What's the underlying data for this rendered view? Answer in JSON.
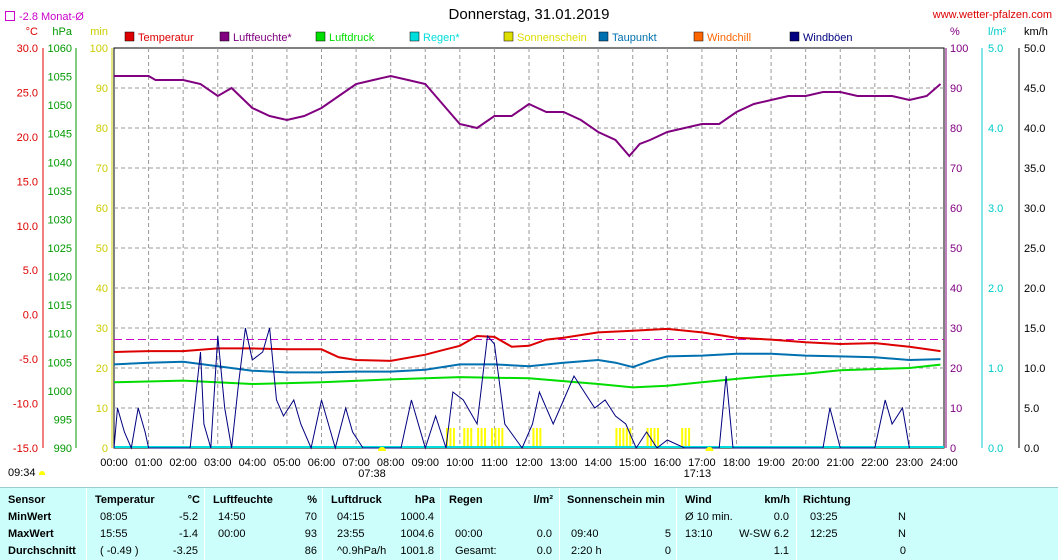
{
  "header": {
    "title": "Donnerstag, 31.01.2019",
    "site": "www.wetter-pfalzen.com",
    "month_avg": "-2.8 Monat-Ø"
  },
  "units": {
    "temp": "°C",
    "pressure": "hPa",
    "minutes": "min",
    "percent": "%",
    "rain": "l/m²",
    "wind": "km/h"
  },
  "legend": [
    {
      "name": "Temperatur",
      "color": "#dd0000"
    },
    {
      "name": "Luftfeuchte*",
      "color": "#800080"
    },
    {
      "name": "Luftdruck",
      "color": "#00dd00"
    },
    {
      "name": "Regen*",
      "color": "#00dddd"
    },
    {
      "name": "Sonnenschein",
      "color": "#dddd00"
    },
    {
      "name": "Taupunkt",
      "color": "#0070b0"
    },
    {
      "name": "Windchill",
      "color": "#ff6600"
    },
    {
      "name": "Windböen",
      "color": "#000080"
    }
  ],
  "sun_events": {
    "sunrise": "07:38",
    "sunset": "17:13",
    "first_label": "09:34"
  },
  "chart_data": {
    "type": "line",
    "title": "Donnerstag, 31.01.2019",
    "x_ticks": [
      "00:00",
      "01:00",
      "02:00",
      "03:00",
      "04:00",
      "05:00",
      "06:00",
      "07:00",
      "08:00",
      "09:00",
      "10:00",
      "11:00",
      "12:00",
      "13:00",
      "14:00",
      "15:00",
      "16:00",
      "17:00",
      "18:00",
      "19:00",
      "20:00",
      "21:00",
      "22:00",
      "23:00",
      "24:00"
    ],
    "xlim": [
      0,
      24
    ],
    "axes": {
      "temp_c": {
        "ticks": [
          "30.0",
          "25.0",
          "20.0",
          "15.0",
          "10.0",
          "5.0",
          "0.0",
          "-5.0",
          "-10.0",
          "-15.0"
        ],
        "range": [
          -15,
          30
        ],
        "color": "#dd0000"
      },
      "pressure_hpa": {
        "ticks": [
          "1060",
          "1055",
          "1050",
          "1045",
          "1040",
          "1035",
          "1030",
          "1025",
          "1020",
          "1015",
          "1010",
          "1005",
          "1000",
          "995",
          "990"
        ],
        "range": [
          990,
          1060
        ],
        "color": "#009900"
      },
      "minutes": {
        "ticks": [
          "100",
          "90",
          "80",
          "70",
          "60",
          "50",
          "40",
          "30",
          "20",
          "10",
          "0"
        ],
        "range": [
          0,
          100
        ],
        "color": "#cccc00"
      },
      "percent": {
        "ticks": [
          "100",
          "90",
          "80",
          "70",
          "60",
          "50",
          "40",
          "30",
          "20",
          "10",
          "0"
        ],
        "range": [
          0,
          100
        ],
        "color": "#800080"
      },
      "rain": {
        "ticks": [
          "5.0",
          "4.0",
          "3.0",
          "2.0",
          "1.0",
          "0.0"
        ],
        "range": [
          0,
          5
        ],
        "color": "#00cccc"
      },
      "wind_kmh": {
        "ticks": [
          "50.0",
          "45.0",
          "40.0",
          "35.0",
          "30.0",
          "25.0",
          "20.0",
          "15.0",
          "10.0",
          "5.0",
          "0.0"
        ],
        "range": [
          0,
          50
        ],
        "color": "#000000"
      }
    },
    "month_avg_line": -2.8,
    "series": [
      {
        "name": "Luftfeuchte*",
        "axis": "percent",
        "color": "#800080",
        "x": [
          0,
          1,
          1.2,
          2,
          2.5,
          3,
          3.4,
          4,
          4.5,
          5,
          5.5,
          6,
          6.5,
          7,
          7.5,
          8,
          8.5,
          9,
          9.5,
          10,
          10.5,
          11,
          11.5,
          12,
          12.5,
          13,
          13.5,
          14,
          14.5,
          14.9,
          15.2,
          15.5,
          16,
          16.5,
          17,
          17.5,
          18,
          18.5,
          19,
          19.5,
          20,
          20.5,
          21,
          21.5,
          22,
          22.5,
          23,
          23.5,
          23.9
        ],
        "y": [
          93,
          93,
          92,
          92,
          91,
          88,
          90,
          85,
          83,
          82,
          83,
          85,
          88,
          91,
          92,
          93,
          92,
          91,
          86,
          81,
          80,
          83,
          83,
          86,
          84,
          84,
          82,
          79,
          77,
          73,
          76,
          77,
          79,
          80,
          81,
          81,
          84,
          86,
          87,
          88,
          88,
          89,
          89,
          88,
          88,
          88,
          87,
          88,
          91
        ]
      },
      {
        "name": "Temperatur",
        "axis": "temp_c",
        "color": "#dd0000",
        "x": [
          0,
          1,
          2,
          3,
          4,
          5,
          6,
          6.5,
          7,
          8,
          9,
          9.5,
          10,
          10.5,
          11,
          11.5,
          12,
          12.5,
          13,
          14,
          15,
          16,
          17,
          18,
          19,
          20,
          21,
          22,
          23,
          23.9
        ],
        "y": [
          -4.2,
          -4.1,
          -4.1,
          -3.8,
          -3.8,
          -3.9,
          -3.9,
          -4.8,
          -5.1,
          -5.2,
          -4.5,
          -4.0,
          -3.5,
          -2.4,
          -2.5,
          -3.6,
          -3.5,
          -2.8,
          -2.6,
          -2.0,
          -1.8,
          -1.6,
          -2.0,
          -2.6,
          -2.8,
          -3.1,
          -3.3,
          -3.2,
          -3.6,
          -4.1
        ]
      },
      {
        "name": "Taupunkt",
        "axis": "temp_c",
        "color": "#0070b0",
        "x": [
          0,
          1,
          2,
          3,
          4,
          5,
          6,
          7,
          8,
          9,
          10,
          11,
          12,
          13,
          14,
          14.5,
          15,
          15.5,
          16,
          17,
          18,
          19,
          20,
          21,
          22,
          23,
          23.9
        ],
        "y": [
          -5.6,
          -5.4,
          -5.3,
          -5.8,
          -6.3,
          -6.5,
          -6.5,
          -6.4,
          -6.4,
          -6.2,
          -5.6,
          -5.6,
          -5.8,
          -5.4,
          -5.1,
          -5.4,
          -5.9,
          -5.2,
          -4.7,
          -4.6,
          -4.4,
          -4.4,
          -4.6,
          -4.7,
          -4.8,
          -5.1,
          -5.0
        ]
      },
      {
        "name": "Luftdruck",
        "axis": "pressure_hpa",
        "color": "#00dd00",
        "x": [
          0,
          2,
          4,
          6,
          8,
          10,
          12,
          14,
          15,
          16,
          17,
          18,
          19,
          20,
          21,
          22,
          23,
          23.9
        ],
        "y": [
          1001.5,
          1001.8,
          1001.2,
          1001.5,
          1002.0,
          1002.4,
          1002.2,
          1001.2,
          1000.6,
          1000.9,
          1001.5,
          1002.1,
          1002.6,
          1003.0,
          1003.6,
          1003.8,
          1004.0,
          1004.6
        ]
      },
      {
        "name": "Windböen",
        "axis": "wind_kmh",
        "color": "#000080",
        "x": [
          0,
          0.1,
          0.3,
          0.5,
          0.7,
          0.9,
          1.0,
          1.2,
          1.5,
          2.0,
          2.2,
          2.5,
          2.6,
          2.8,
          3.0,
          3.2,
          3.4,
          3.6,
          3.8,
          4.0,
          4.3,
          4.5,
          4.7,
          4.9,
          5.2,
          5.4,
          5.7,
          6.0,
          6.2,
          6.4,
          6.7,
          6.9,
          7.2,
          8.0,
          8.3,
          8.6,
          9.0,
          9.3,
          9.6,
          9.8,
          10.1,
          10.5,
          10.8,
          11.0,
          11.3,
          11.8,
          12.1,
          12.3,
          12.7,
          13.0,
          13.3,
          13.6,
          13.9,
          14.2,
          14.5,
          14.8,
          15.1,
          15.4,
          15.7,
          16.0,
          16.5,
          16.8,
          17.0,
          17.5,
          17.7,
          17.9,
          18.2,
          18.5,
          20.3,
          20.5,
          20.7,
          21.0,
          22.0,
          22.3,
          22.5,
          22.8,
          23.0
        ],
        "y": [
          0,
          5,
          2,
          0,
          5,
          2,
          0,
          0,
          0,
          0,
          0,
          12,
          3,
          0,
          14,
          5,
          0,
          8,
          15,
          11,
          12,
          15,
          6,
          4,
          6,
          3,
          0,
          6,
          3,
          0,
          5,
          2,
          0,
          0,
          0,
          6,
          0,
          4,
          0,
          7,
          6,
          3,
          14,
          13,
          3,
          0,
          3,
          7,
          3,
          6,
          9,
          7,
          5,
          6,
          4,
          3,
          0,
          2,
          0,
          1,
          0,
          0,
          0,
          0,
          9,
          0,
          0,
          0,
          0,
          0,
          5,
          0,
          0,
          6,
          3,
          5,
          0
        ]
      }
    ],
    "sunshine_bars": [
      {
        "x": [
          9.6,
          9.7,
          9.8,
          10.1,
          10.2,
          10.3,
          10.5,
          10.6,
          10.7,
          10.9,
          11.0,
          11.1,
          11.2,
          12.1,
          12.2,
          12.3,
          14.5,
          14.6,
          14.7,
          14.8,
          14.9,
          15.4,
          15.5,
          15.6,
          15.7,
          16.4,
          16.5,
          16.6
        ],
        "y": 5
      }
    ]
  },
  "stats": {
    "headers": {
      "sensor": "Sensor",
      "temp": "Temperatur",
      "temp_unit": "°C",
      "hum": "Luftfeuchte",
      "hum_unit": "%",
      "press": "Luftdruck",
      "press_unit": "hPa",
      "rain": "Regen",
      "rain_unit": "l/m²",
      "sun": "Sonnenschein min",
      "wind": "Wind",
      "wind_unit": "km/h",
      "dir": "Richtung"
    },
    "rows": [
      {
        "label": "MinWert",
        "temp_time": "08:05",
        "temp_val": "-5.2",
        "hum_time": "14:50",
        "hum_val": "70",
        "press_time": "04:15",
        "press_val": "1000.4",
        "rain_time": "",
        "rain_val": "",
        "sun_time": "",
        "sun_val": "",
        "wind_time": "Ø 10 min.",
        "wind_val": "0.0",
        "dir_time": "03:25",
        "dir_val": "N"
      },
      {
        "label": "MaxWert",
        "temp_time": "15:55",
        "temp_val": "-1.4",
        "hum_time": "00:00",
        "hum_val": "93",
        "press_time": "23:55",
        "press_val": "1004.6",
        "rain_time": "00:00",
        "rain_val": "0.0",
        "sun_time": "09:40",
        "sun_val": "5",
        "wind_time": "13:10",
        "wind_val": "W-SW 6.2",
        "dir_time": "12:25",
        "dir_val": "N"
      },
      {
        "label": "Durchschnitt",
        "temp_time": "( -0.49 )",
        "temp_val": "-3.25",
        "hum_time": "",
        "hum_val": "86",
        "press_time": "^0.9hPa/h",
        "press_val": "1001.8",
        "rain_time": "Gesamt:",
        "rain_val": "0.0",
        "sun_time": "2:20 h",
        "sun_val": "0",
        "wind_time": "",
        "wind_val": "1.1",
        "dir_time": "",
        "dir_val": "0"
      }
    ]
  }
}
